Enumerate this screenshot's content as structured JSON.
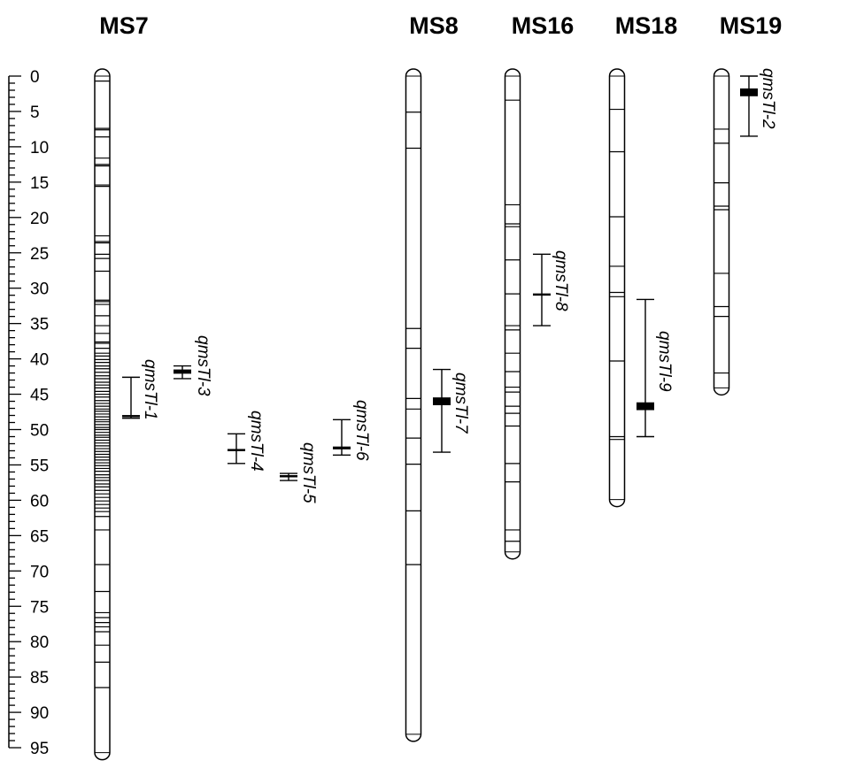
{
  "scale": {
    "min": 0,
    "max": 95,
    "major_step": 5,
    "minor_step": 1,
    "labels": [
      "0",
      "5",
      "10",
      "15",
      "20",
      "25",
      "30",
      "35",
      "40",
      "45",
      "50",
      "55",
      "60",
      "65",
      "70",
      "75",
      "80",
      "85",
      "90",
      "95"
    ]
  },
  "chromosomes": [
    {
      "name": "MS7",
      "length": 96.2,
      "markers": [
        0.7,
        7.4,
        7.6,
        8.6,
        11.6,
        12.5,
        12.7,
        15.4,
        15.6,
        22.6,
        23.4,
        23.6,
        25.2,
        25.8,
        27.6,
        31.7,
        31.9,
        32.3,
        33.9,
        35.3,
        36.4,
        37.6,
        37.8,
        38.5,
        39.2,
        39.6,
        40.1,
        40.5,
        41.0,
        41.4,
        41.9,
        42.4,
        42.8,
        43.3,
        43.7,
        44.1,
        44.6,
        45.0,
        45.4,
        45.9,
        46.3,
        46.7,
        47.1,
        47.4,
        47.8,
        48.2,
        48.6,
        48.9,
        49.3,
        49.7,
        50.0,
        50.4,
        50.8,
        51.1,
        51.5,
        51.9,
        52.3,
        52.7,
        53.1,
        53.5,
        53.9,
        54.3,
        54.7,
        55.1,
        55.5,
        55.9,
        56.4,
        56.8,
        57.2,
        57.7,
        58.1,
        58.6,
        59.1,
        59.6,
        60.1,
        60.6,
        61.1,
        61.6,
        62.3,
        64.2,
        69.1,
        72.9,
        75.9,
        76.6,
        77.3,
        77.9,
        78.6,
        80.5,
        82.9,
        86.5
      ]
    },
    {
      "name": "MS8",
      "length": 93.6,
      "markers": [
        5.1,
        10.2,
        35.7,
        38.5,
        45.6,
        47.1,
        51.2,
        54.9,
        61.5,
        69.1
      ]
    },
    {
      "name": "MS16",
      "length": 67.8,
      "markers": [
        3.4,
        18.2,
        20.9,
        21.3,
        26.0,
        30.8,
        35.3,
        35.9,
        39.2,
        41.8,
        44.0,
        44.7,
        46.7,
        47.7,
        49.5,
        54.8,
        57.4,
        64.2,
        65.8
      ]
    },
    {
      "name": "MS18",
      "length": 60.4,
      "markers": [
        4.7,
        10.7,
        19.9,
        26.9,
        30.6,
        31.2,
        40.3,
        51.0,
        51.4
      ]
    },
    {
      "name": "MS19",
      "length": 44.6,
      "markers": [
        7.5,
        9.5,
        15.1,
        18.4,
        18.9,
        27.9,
        32.6,
        34.0,
        42.0
      ]
    }
  ],
  "qtls": [
    {
      "name": "qmsTl-1",
      "chromosome": "MS7",
      "start": 42.6,
      "peak": 48.1,
      "end": 48.4,
      "peak_width": 0.3
    },
    {
      "name": "qmsTl-3",
      "chromosome": "MS7",
      "start": 41.0,
      "peak": 41.8,
      "end": 42.8,
      "peak_width": 0.6
    },
    {
      "name": "qmsTl-4",
      "chromosome": "MS7",
      "start": 50.6,
      "peak": 52.9,
      "end": 54.8,
      "peak_width": 0.3
    },
    {
      "name": "qmsTl-5",
      "chromosome": "MS7",
      "start": 56.2,
      "peak": 56.6,
      "end": 57.2,
      "peak_width": 0.3
    },
    {
      "name": "qmsTl-6",
      "chromosome": "MS7",
      "start": 48.6,
      "peak": 52.6,
      "end": 53.6,
      "peak_width": 0.4
    },
    {
      "name": "qmsTl-7",
      "chromosome": "MS8",
      "start": 41.5,
      "peak": 46.0,
      "end": 53.2,
      "peak_width": 1.1
    },
    {
      "name": "qmsTl-8",
      "chromosome": "MS16",
      "start": 25.2,
      "peak": 30.9,
      "end": 35.3,
      "peak_width": 0.3
    },
    {
      "name": "qmsTl-9",
      "chromosome": "MS18",
      "start": 31.6,
      "peak": 46.7,
      "end": 51.0,
      "peak_width": 1.1
    },
    {
      "name": "qmsTl-2",
      "chromosome": "MS19",
      "start": 0.0,
      "peak": 2.3,
      "end": 8.5,
      "peak_width": 1.1
    }
  ]
}
